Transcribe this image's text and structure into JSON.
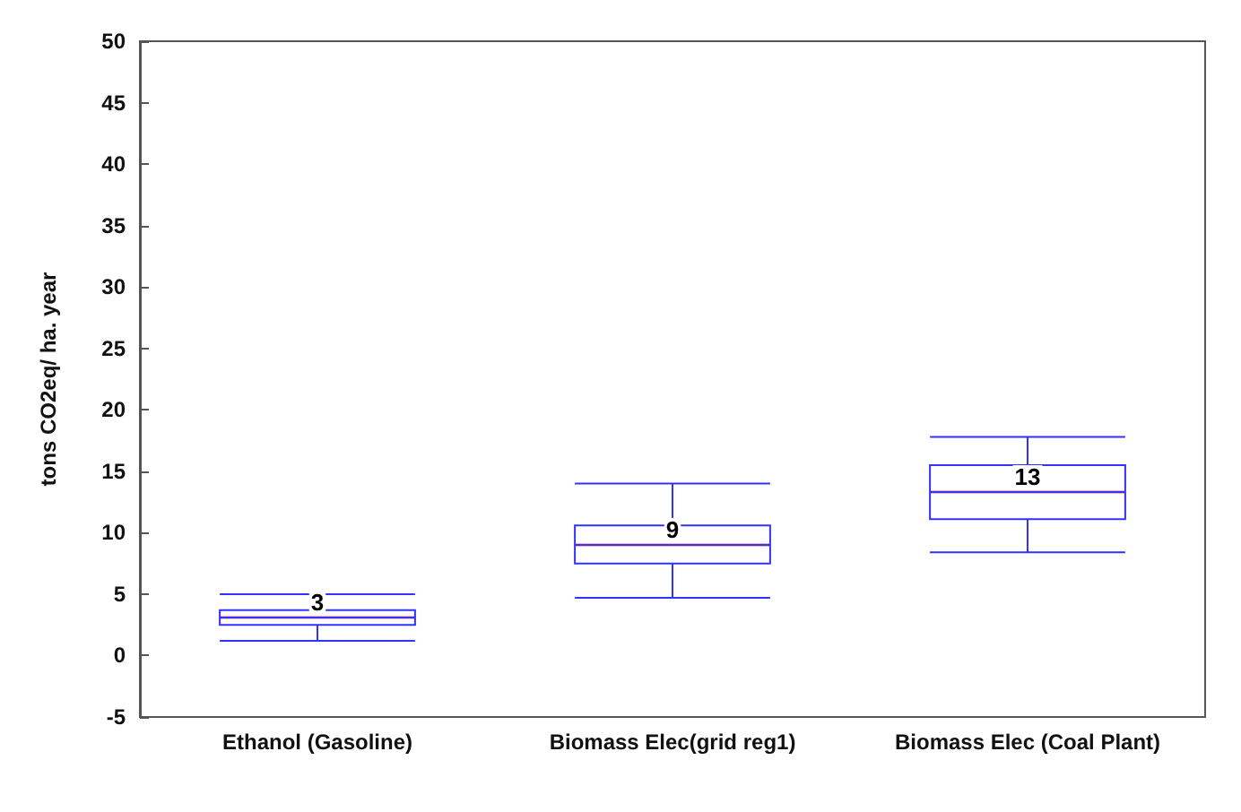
{
  "chart_data": {
    "type": "box",
    "ylabel": "tons CO2eq/ ha. year",
    "categories": [
      "Ethanol (Gasoline)",
      "Biomass Elec(grid reg1)",
      "Biomass Elec (Coal Plant)"
    ],
    "series": [
      {
        "color": "#3333ff",
        "boxes": [
          {
            "low": 1.2,
            "q1": 2.5,
            "median": 3.1,
            "q3": 3.7,
            "high": 5
          },
          {
            "low": 4.7,
            "q1": 7.5,
            "median": 9,
            "q3": 10.6,
            "high": 14
          },
          {
            "low": 8.4,
            "q1": 11.1,
            "median": 13.3,
            "q3": 15.5,
            "high": 17.8
          }
        ]
      }
    ],
    "ylim": [
      -5,
      50
    ],
    "yticks": [
      -5,
      0,
      5,
      10,
      15,
      20,
      25,
      30,
      35,
      40,
      45,
      50
    ],
    "grid": false,
    "annotations": [
      {
        "text": "3",
        "x": "Ethanol (Gasoline)",
        "y": 3.1
      },
      {
        "text": "9",
        "x": "Biomass Elec(grid reg1)",
        "y": 9
      },
      {
        "text": "13",
        "x": "Biomass Elec (Coal Plant)",
        "y": 13.3
      }
    ]
  }
}
